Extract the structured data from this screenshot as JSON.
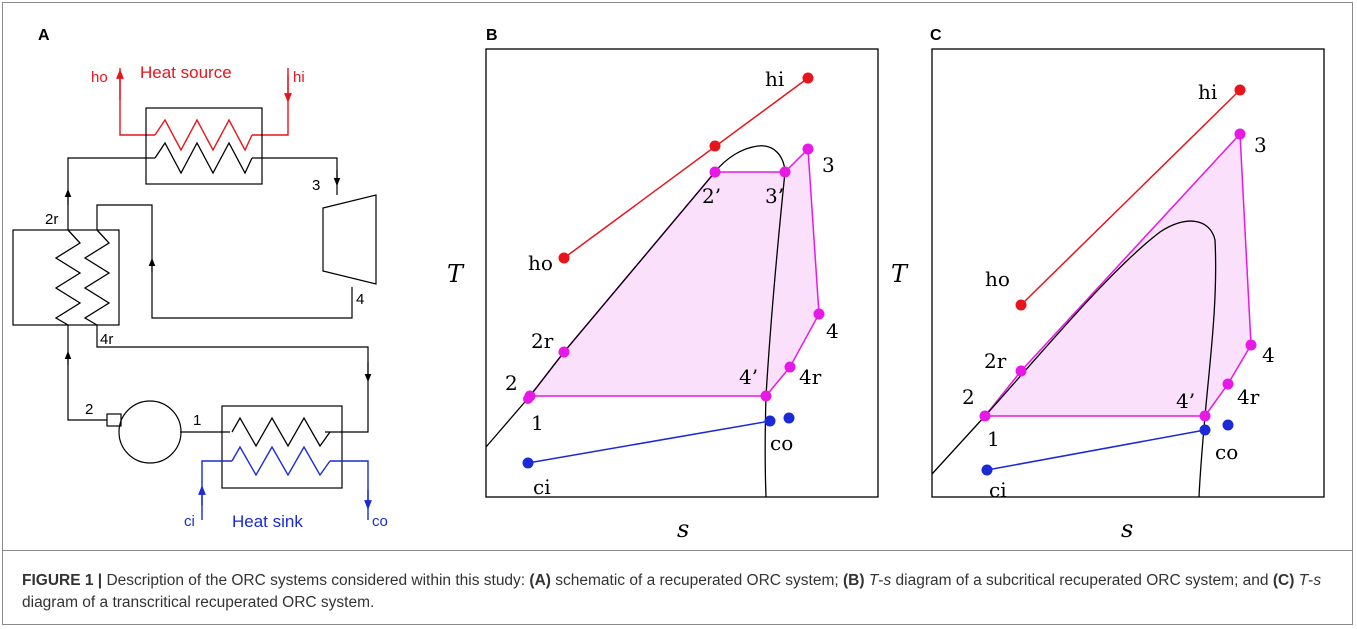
{
  "panels": {
    "a": "A",
    "b": "B",
    "c": "C"
  },
  "schematic": {
    "heat_source": "Heat source",
    "heat_sink": "Heat sink",
    "ho": "ho",
    "hi": "hi",
    "ci": "ci",
    "co": "co",
    "n1": "1",
    "n2": "2",
    "n2r": "2r",
    "n3": "3",
    "n4": "4",
    "n4r": "4r"
  },
  "ts_b": {
    "x_axis": "s",
    "y_axis": "T",
    "hi": "hi",
    "ho": "ho",
    "ci": "ci",
    "co": "co",
    "p1": "1",
    "p2": "2",
    "p2r": "2r",
    "p2p": "2’",
    "p3p": "3’",
    "p3": "3",
    "p4": "4",
    "p4r": "4r",
    "p4p": "4’"
  },
  "ts_c": {
    "x_axis": "s",
    "y_axis": "T",
    "hi": "hi",
    "ho": "ho",
    "ci": "ci",
    "co": "co",
    "p1": "1",
    "p2": "2",
    "p2r": "2r",
    "p3": "3",
    "p4": "4",
    "p4r": "4r",
    "p4p": "4’"
  },
  "caption": {
    "figure": "FIGURE 1 |",
    "t1": " Description of the ORC systems considered within this study: ",
    "a": "(A)",
    "t2": " schematic of a recuperated ORC system; ",
    "b": "(B)",
    "ts1": "T",
    "t3": "-",
    "ss1": "s",
    "t4": " diagram of a subcritical recuperated ORC system; and ",
    "c": "(C)",
    "ts2": "T",
    "t5": "-",
    "ss2": "s",
    "t6": " diagram of a transcritical recuperated ORC system."
  },
  "colors": {
    "source": "#e8141c",
    "sink": "#1a2ad6",
    "cycle": "#e619e6",
    "cycle_fill": "#fbe0fb",
    "line": "#000000"
  }
}
